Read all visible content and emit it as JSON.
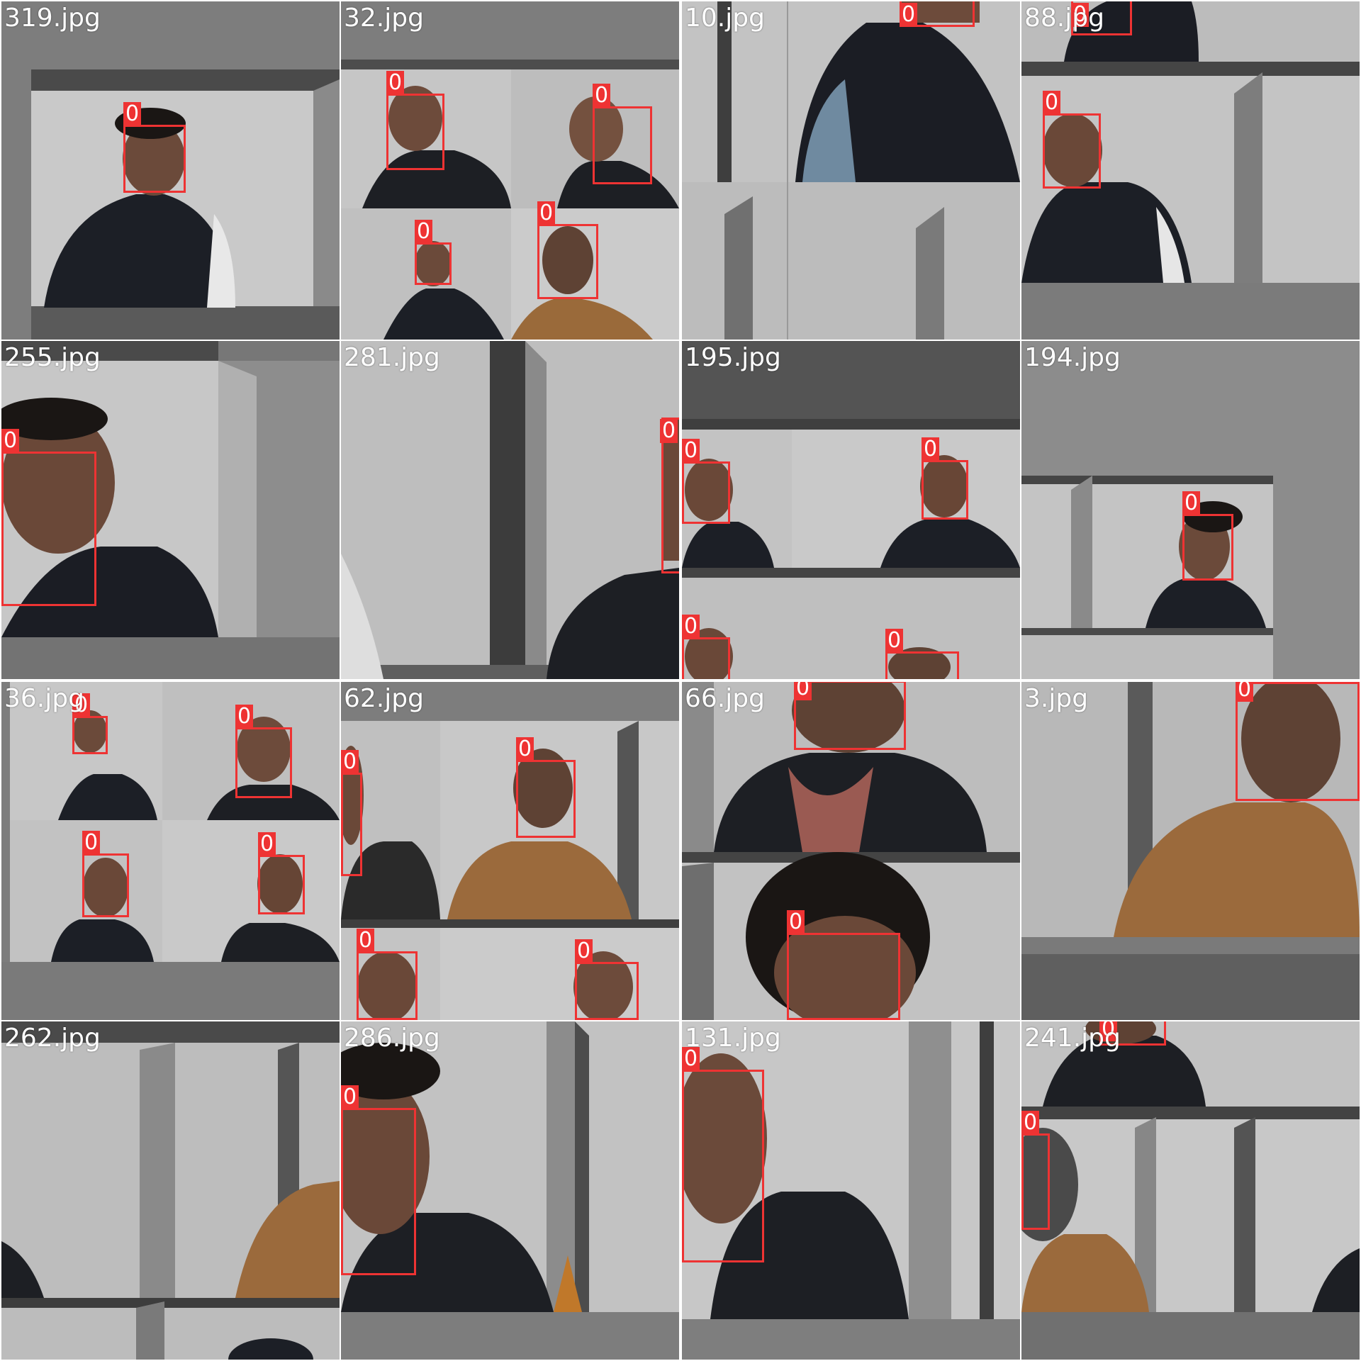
{
  "mosaic": {
    "box_color": "#ee3333",
    "tiles": [
      {
        "filename": "319.jpg",
        "labels": [
          "0"
        ]
      },
      {
        "filename": "32.jpg",
        "labels": [
          "0",
          "0",
          "0",
          "0"
        ]
      },
      {
        "filename": "10.jpg",
        "labels": [
          "0"
        ]
      },
      {
        "filename": "88.jpg",
        "labels": [
          "0",
          "0"
        ]
      },
      {
        "filename": "255.jpg",
        "labels": [
          "0"
        ]
      },
      {
        "filename": "281.jpg",
        "labels": [
          "0"
        ]
      },
      {
        "filename": "195.jpg",
        "labels": [
          "0",
          "0",
          "0",
          "0"
        ]
      },
      {
        "filename": "194.jpg",
        "labels": [
          "0"
        ]
      },
      {
        "filename": "36.jpg",
        "labels": [
          "0",
          "0",
          "0",
          "0"
        ]
      },
      {
        "filename": "62.jpg",
        "labels": [
          "0",
          "0",
          "0",
          "0"
        ]
      },
      {
        "filename": "66.jpg",
        "labels": [
          "0",
          "0"
        ]
      },
      {
        "filename": "3.jpg",
        "labels": [
          "0"
        ]
      },
      {
        "filename": "262.jpg",
        "labels": []
      },
      {
        "filename": "286.jpg",
        "labels": [
          "0"
        ]
      },
      {
        "filename": "131.jpg",
        "labels": [
          "0"
        ]
      },
      {
        "filename": "241.jpg",
        "labels": [
          "0",
          "0"
        ]
      }
    ]
  }
}
